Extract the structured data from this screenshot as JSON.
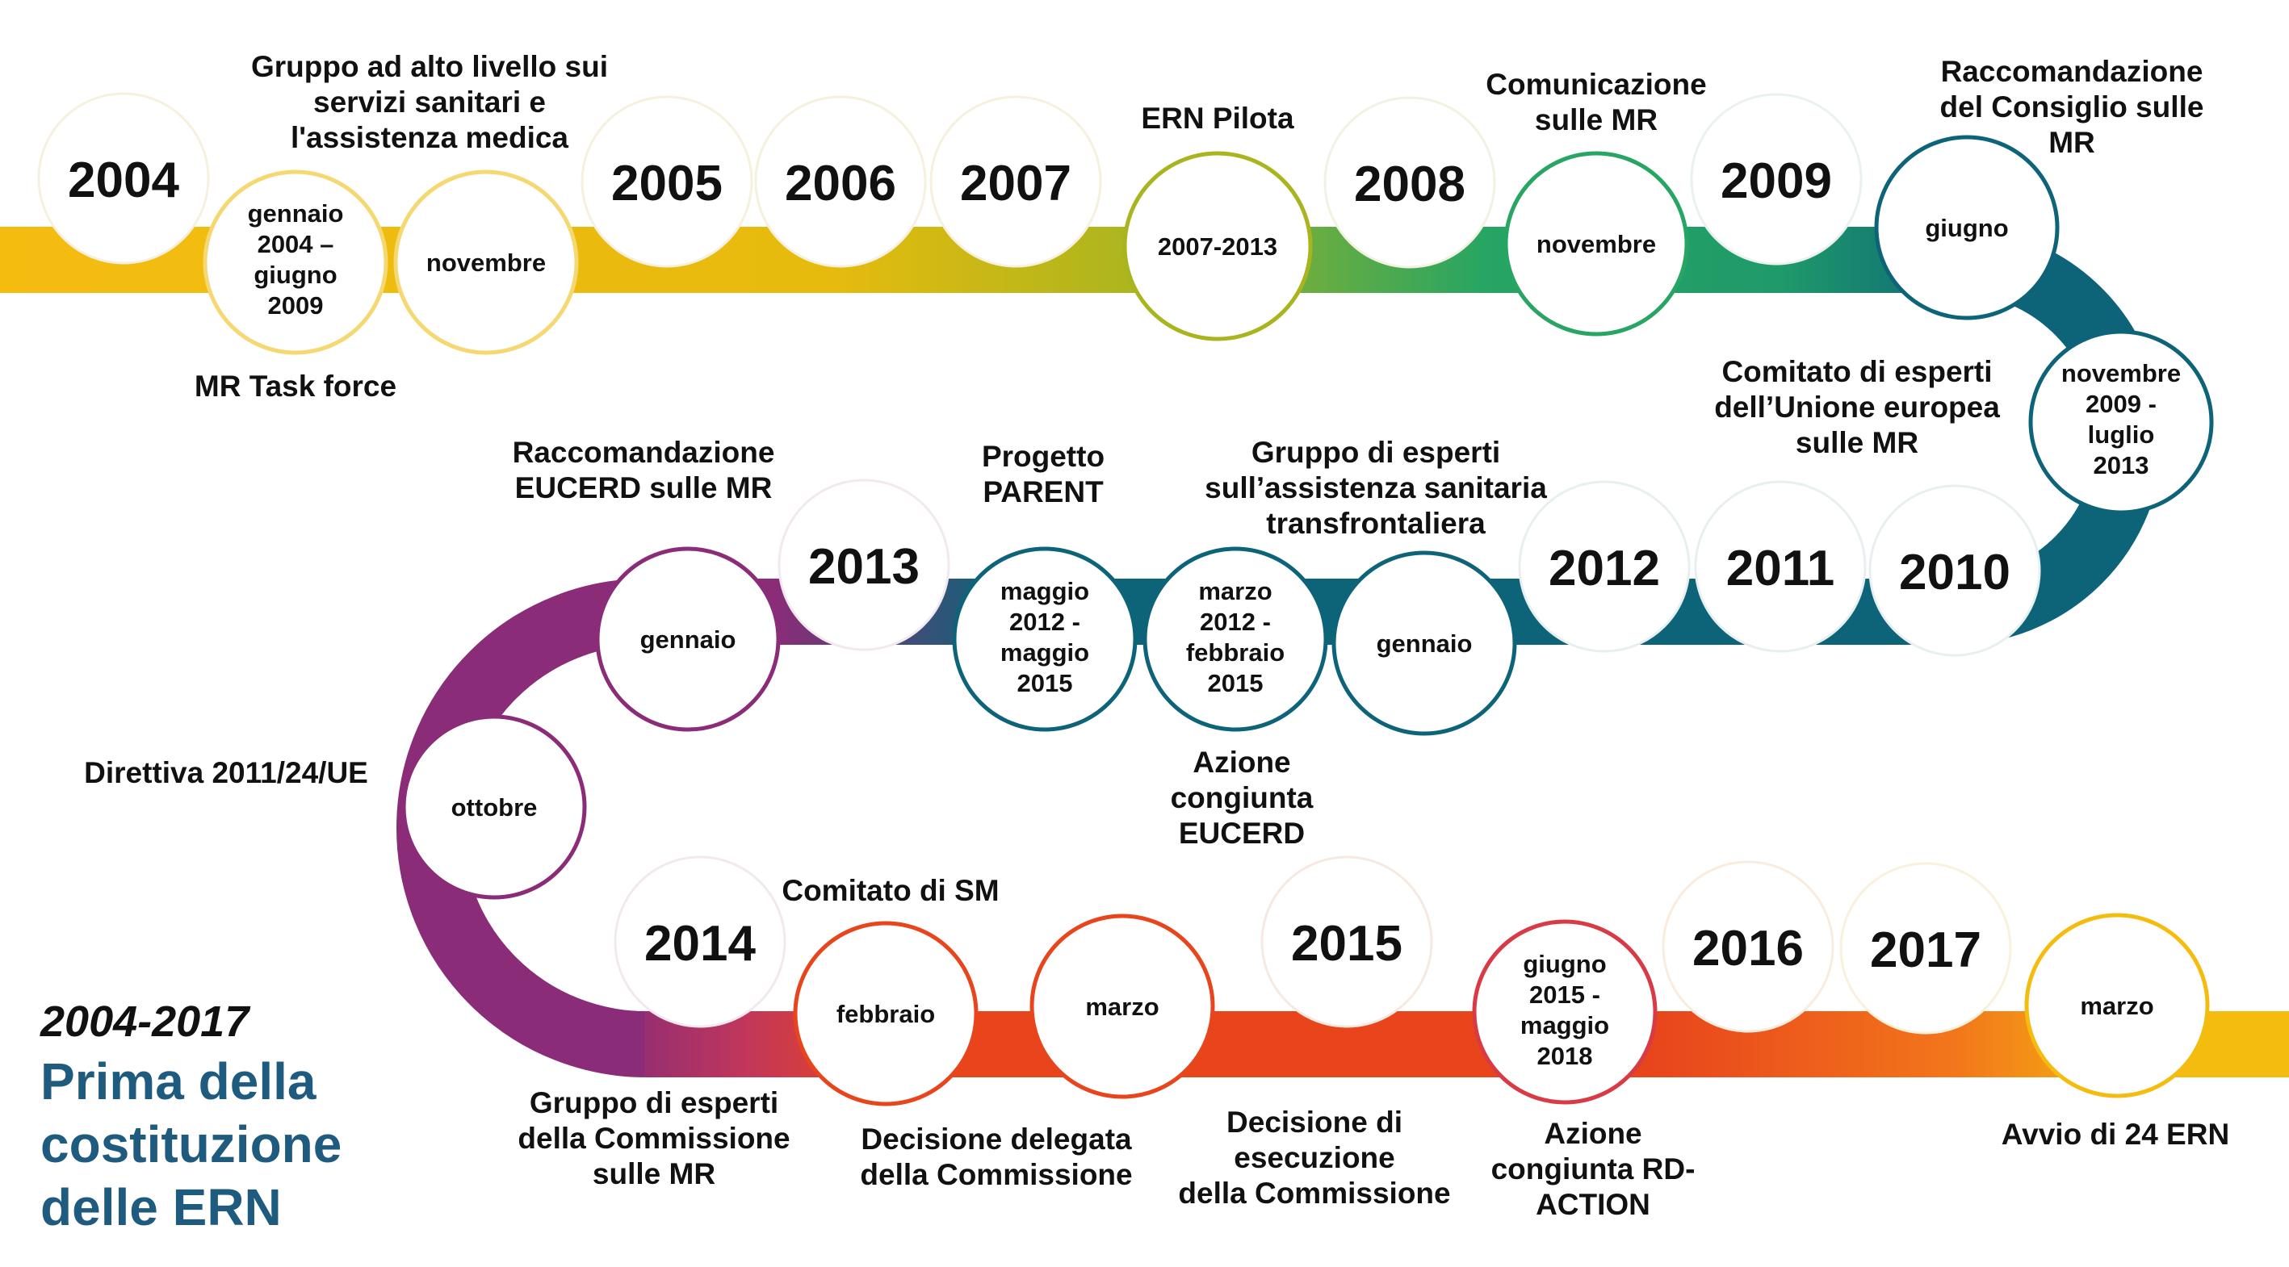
{
  "title": {
    "range": "2004-2017",
    "lines": [
      "Prima della",
      "costituzione",
      "delle ERN"
    ]
  },
  "colors": {
    "yellow": "#f5bc10",
    "olive": "#a9b51f",
    "green": "#27a563",
    "teal": "#0d6478",
    "purple": "#8a2c77",
    "red": "#e8451c",
    "orange": "#f2761b",
    "title": "#1f5a7f"
  },
  "years": {
    "y2004": "2004",
    "y2005": "2005",
    "y2006": "2006",
    "y2007": "2007",
    "y2008": "2008",
    "y2009": "2009",
    "y2010": "2010",
    "y2011": "2011",
    "y2012": "2012",
    "y2013": "2013",
    "y2014": "2014",
    "y2015": "2015",
    "y2016": "2016",
    "y2017": "2017"
  },
  "events": [
    {
      "id": "mr-task-force",
      "date": [
        "gennaio",
        "2004 –",
        "giugno",
        "2009"
      ],
      "label": [
        "MR Task force"
      ]
    },
    {
      "id": "hlg",
      "date": [
        "novembre"
      ],
      "label": [
        "Gruppo ad alto livello sui",
        "servizi sanitari e",
        "l'assistenza medica"
      ]
    },
    {
      "id": "ern-pilota",
      "date": [
        "2007-2013"
      ],
      "label": [
        "ERN Pilota"
      ]
    },
    {
      "id": "comunicazione",
      "date": [
        "novembre"
      ],
      "label": [
        "Comunicazione",
        "sulle MR"
      ]
    },
    {
      "id": "raccomandazione-consiglio",
      "date": [
        "giugno"
      ],
      "label": [
        "Raccomandazione",
        "del Consiglio sulle",
        "MR"
      ]
    },
    {
      "id": "eucerd-comitato",
      "date": [
        "novembre",
        "2009 -",
        "luglio",
        "2013"
      ],
      "label": [
        "Comitato di esperti",
        "dell’Unione europea",
        "sulle MR"
      ]
    },
    {
      "id": "gruppo-transfrontaliera",
      "date": [
        "gennaio"
      ],
      "label": [
        "Gruppo di esperti",
        "sull’assistenza sanitaria",
        "transfrontaliera"
      ]
    },
    {
      "id": "azione-eucerd",
      "date": [
        "marzo",
        "2012 -",
        "febbraio",
        "2015"
      ],
      "label": [
        "Azione",
        "congiunta",
        "EUCERD"
      ]
    },
    {
      "id": "parent",
      "date": [
        "maggio",
        "2012 -",
        "maggio",
        "2015"
      ],
      "label": [
        "Progetto",
        "PARENT"
      ]
    },
    {
      "id": "raccomandazione-eucerd",
      "date": [
        "gennaio"
      ],
      "label": [
        "Raccomandazione",
        "EUCERD sulle MR"
      ]
    },
    {
      "id": "direttiva",
      "date": [
        "ottobre"
      ],
      "label": [
        "Direttiva 2011/24/UE"
      ]
    },
    {
      "id": "gruppo-commissione",
      "date": [],
      "label": [
        "Gruppo di esperti",
        "della Commissione",
        "sulle MR"
      ]
    },
    {
      "id": "comitato-sm",
      "date": [
        "febbraio"
      ],
      "label": [
        "Comitato di SM"
      ]
    },
    {
      "id": "decisione-delegata",
      "date": [
        "marzo"
      ],
      "label": [
        "Decisione delegata",
        "della Commissione"
      ]
    },
    {
      "id": "decisione-esecuzione",
      "date": [],
      "label": [
        "Decisione di",
        "esecuzione",
        "della Commissione"
      ]
    },
    {
      "id": "rd-action",
      "date": [
        "giugno",
        "2015 -",
        "maggio",
        "2018"
      ],
      "label": [
        "Azione",
        "congiunta RD-",
        "ACTION"
      ]
    },
    {
      "id": "avvio",
      "date": [
        "marzo"
      ],
      "label": [
        "Avvio di 24 ERN"
      ]
    }
  ]
}
